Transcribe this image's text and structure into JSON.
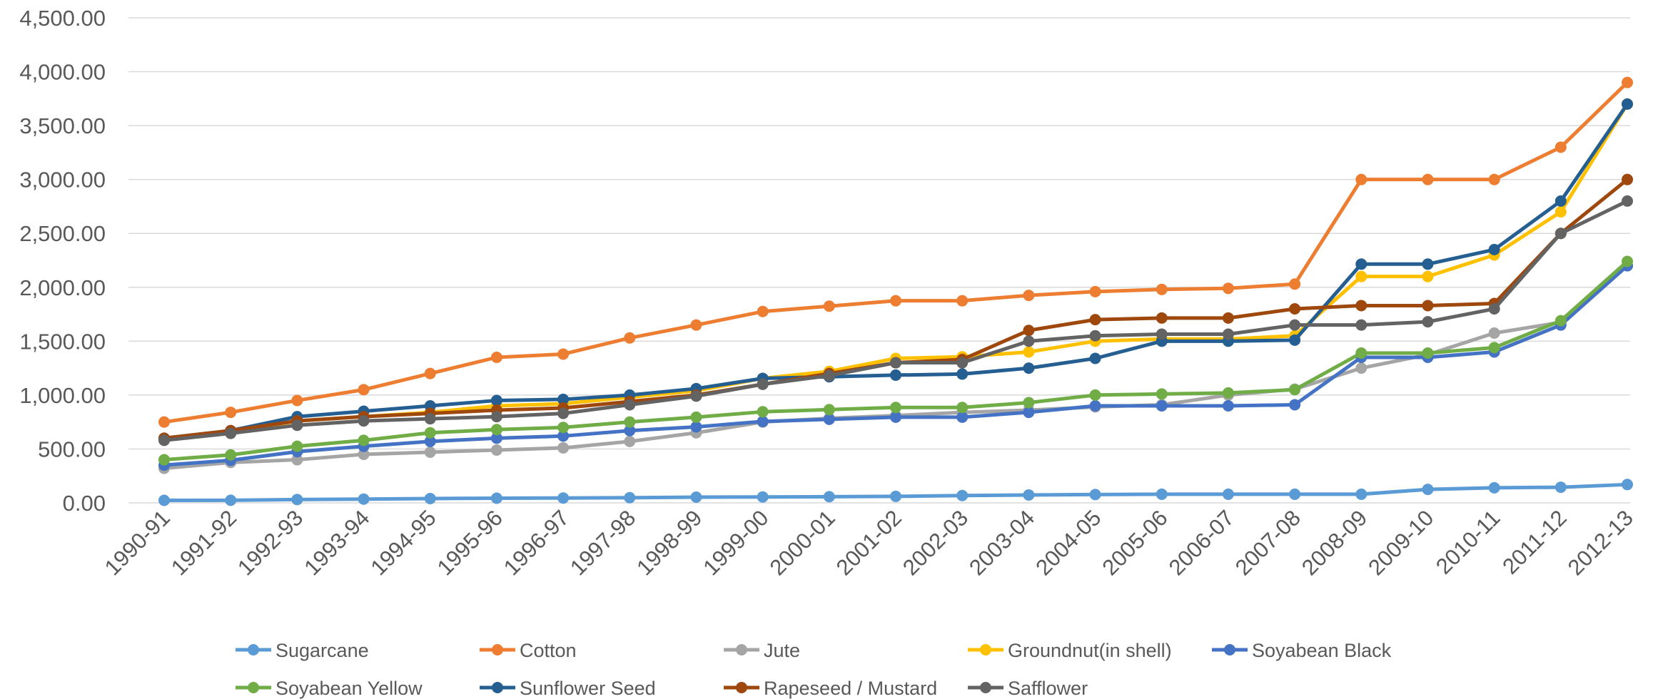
{
  "chart_data": {
    "type": "line",
    "title": "",
    "xlabel": "",
    "ylabel": "",
    "ylim": [
      0,
      4500
    ],
    "y_ticks": [
      "0.00",
      "500.00",
      "1,000.00",
      "1,500.00",
      "2,000.00",
      "2,500.00",
      "3,000.00",
      "3,500.00",
      "4,000.00",
      "4,500.00"
    ],
    "grid": "horizontal",
    "legend_position": "bottom",
    "categories": [
      "1990-91",
      "1991-92",
      "1992-93",
      "1993-94",
      "1994-95",
      "1995-96",
      "1996-97",
      "1997-98",
      "1998-99",
      "1999-00",
      "2000-01",
      "2001-02",
      "2002-03",
      "2003-04",
      "2004-05",
      "2005-06",
      "2006-07",
      "2007-08",
      "2008-09",
      "2009-10",
      "2010-11",
      "2011-12",
      "2012-13"
    ],
    "series": [
      {
        "name": "Sugarcane",
        "color": "#5b9bd5",
        "values": [
          23,
          24,
          31,
          35,
          40,
          43,
          45,
          48,
          53,
          55,
          57,
          60,
          68,
          73,
          77,
          80,
          80,
          80,
          80,
          125,
          140,
          145,
          170
        ]
      },
      {
        "name": "Cotton",
        "color": "#ed7d31",
        "values": [
          750,
          840,
          950,
          1050,
          1200,
          1350,
          1380,
          1530,
          1650,
          1775,
          1825,
          1875,
          1875,
          1925,
          1960,
          1980,
          1990,
          2030,
          3000,
          3000,
          3000,
          3300,
          3900
        ]
      },
      {
        "name": "Jute",
        "color": "#a5a5a5",
        "values": [
          320,
          375,
          400,
          450,
          470,
          490,
          510,
          570,
          650,
          750,
          785,
          810,
          840,
          860,
          890,
          910,
          1000,
          1055,
          1250,
          1375,
          1575,
          1675,
          2200
        ]
      },
      {
        "name": "Groundnut(in shell)",
        "color": "#ffc000",
        "values": [
          595,
          650,
          760,
          800,
          840,
          900,
          920,
          980,
          1040,
          1155,
          1220,
          1340,
          1355,
          1400,
          1500,
          1520,
          1520,
          1550,
          2100,
          2100,
          2300,
          2700,
          3700
        ]
      },
      {
        "name": "Soyabean Black",
        "color": "#4472c4",
        "values": [
          350,
          395,
          475,
          525,
          570,
          600,
          620,
          670,
          705,
          755,
          775,
          795,
          795,
          840,
          900,
          900,
          900,
          910,
          1350,
          1350,
          1400,
          1650,
          2200
        ]
      },
      {
        "name": "Soyabean Yellow",
        "color": "#70ad47",
        "values": [
          400,
          445,
          525,
          580,
          650,
          680,
          700,
          750,
          795,
          845,
          865,
          885,
          885,
          930,
          1000,
          1010,
          1020,
          1050,
          1390,
          1390,
          1440,
          1690,
          2240
        ]
      },
      {
        "name": "Sunflower Seed",
        "color": "#255e91",
        "values": [
          600,
          670,
          800,
          850,
          900,
          950,
          960,
          1000,
          1060,
          1155,
          1170,
          1185,
          1195,
          1250,
          1340,
          1500,
          1500,
          1510,
          2215,
          2215,
          2350,
          2800,
          3700
        ]
      },
      {
        "name": "Rapeseed / Mustard",
        "color": "#9e480e",
        "values": [
          600,
          670,
          760,
          800,
          830,
          860,
          880,
          940,
          1000,
          1100,
          1200,
          1300,
          1330,
          1600,
          1700,
          1715,
          1715,
          1800,
          1830,
          1830,
          1850,
          2500,
          3000
        ]
      },
      {
        "name": "Safflower",
        "color": "#636363",
        "values": [
          580,
          645,
          720,
          760,
          780,
          800,
          830,
          910,
          990,
          1100,
          1180,
          1300,
          1300,
          1500,
          1550,
          1565,
          1565,
          1650,
          1650,
          1680,
          1800,
          2500,
          2800
        ]
      }
    ]
  }
}
